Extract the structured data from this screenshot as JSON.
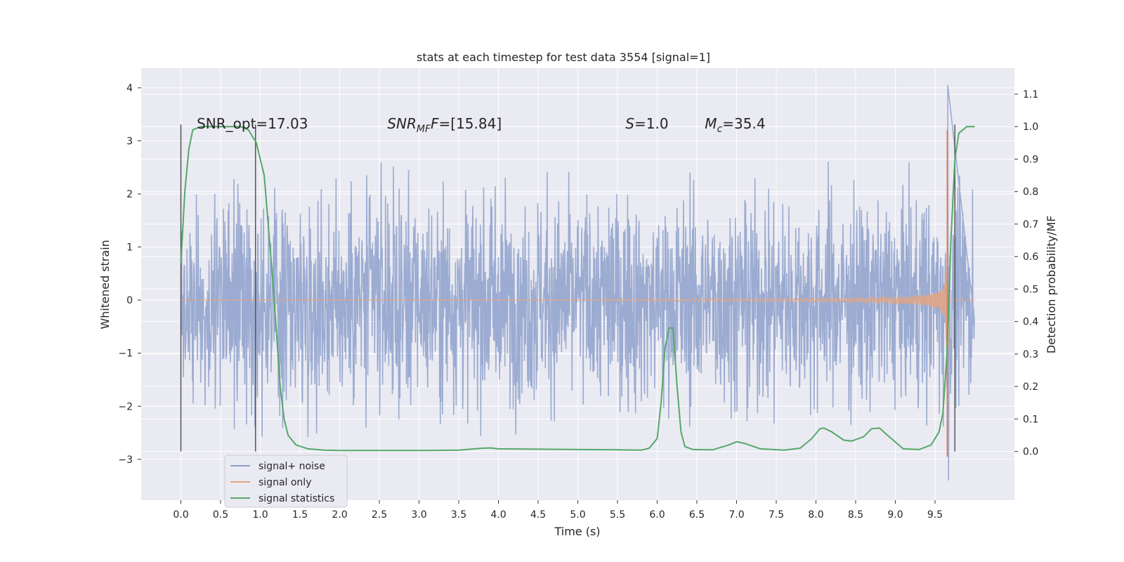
{
  "chart_data": {
    "type": "line",
    "title": "stats at each timestep for test data 3554 [signal=1]",
    "xlabel": "Time (s)",
    "ylabel": "Whitened strain",
    "y2label": "Detection probability/MF",
    "xlim": [
      -0.5,
      10.5
    ],
    "ylim": [
      -3.77,
      4.37
    ],
    "y2lim": [
      -0.15,
      1.18
    ],
    "xticks": [
      "0.0",
      "0.5",
      "1.0",
      "1.5",
      "2.0",
      "2.5",
      "3.0",
      "3.5",
      "4.0",
      "4.5",
      "5.0",
      "5.5",
      "6.0",
      "6.5",
      "7.0",
      "7.5",
      "8.0",
      "8.5",
      "9.0",
      "9.5"
    ],
    "yticks": [
      "−3",
      "−2",
      "−1",
      "0",
      "1",
      "2",
      "3",
      "4"
    ],
    "y2ticks": [
      "0.0",
      "0.1",
      "0.2",
      "0.3",
      "0.4",
      "0.5",
      "0.6",
      "0.7",
      "0.8",
      "0.9",
      "1.0",
      "1.1"
    ],
    "grid": true,
    "legend_position": "lower-left",
    "annotations": [
      {
        "text": "SNR_opt=17.03",
        "x": 0.2
      },
      {
        "text": "SNR",
        "sub": "MF",
        "rest": "=[15.84]",
        "x": 2.6
      },
      {
        "text": "S",
        "rest": "=1.0",
        "x": 5.6
      },
      {
        "text": "M",
        "sub": "c",
        "rest": "=35.4",
        "x": 6.6
      }
    ],
    "vertical_markers": [
      0.0,
      0.94,
      9.75
    ],
    "series": [
      {
        "name": "signal+ noise",
        "color": "#8da0cb",
        "description_values": {
          "t_start": 0.0,
          "t_end": 10.0,
          "noise_sigma": 1.0,
          "peak": 4.05,
          "min": -3.4
        }
      },
      {
        "name": "signal only",
        "color": "#e5a483",
        "description_values": {
          "t_start": 0.0,
          "t_end": 10.0,
          "merger_time": 9.65,
          "peak": 3.2,
          "min": -2.95
        }
      },
      {
        "name": "signal statistics",
        "color": "#55a868",
        "x": [
          0.0,
          0.05,
          0.1,
          0.15,
          0.25,
          0.5,
          0.75,
          0.85,
          0.95,
          1.05,
          1.15,
          1.2,
          1.25,
          1.3,
          1.35,
          1.45,
          1.6,
          1.8,
          2.0,
          2.5,
          3.0,
          3.5,
          3.8,
          3.9,
          4.0,
          4.5,
          5.0,
          5.5,
          5.8,
          5.9,
          6.0,
          6.05,
          6.1,
          6.15,
          6.2,
          6.25,
          6.3,
          6.35,
          6.45,
          6.7,
          6.9,
          7.0,
          7.1,
          7.3,
          7.6,
          7.8,
          7.95,
          8.05,
          8.1,
          8.2,
          8.35,
          8.45,
          8.6,
          8.7,
          8.8,
          8.9,
          9.1,
          9.3,
          9.45,
          9.55,
          9.6,
          9.65,
          9.7,
          9.75,
          9.8,
          9.9,
          10.0
        ],
        "y": [
          0.58,
          0.8,
          0.93,
          0.99,
          1.0,
          1.0,
          1.0,
          0.99,
          0.95,
          0.85,
          0.55,
          0.38,
          0.2,
          0.1,
          0.05,
          0.02,
          0.008,
          0.004,
          0.003,
          0.003,
          0.003,
          0.004,
          0.01,
          0.011,
          0.008,
          0.007,
          0.006,
          0.005,
          0.004,
          0.01,
          0.04,
          0.15,
          0.32,
          0.38,
          0.38,
          0.2,
          0.06,
          0.015,
          0.006,
          0.005,
          0.02,
          0.03,
          0.025,
          0.008,
          0.004,
          0.01,
          0.04,
          0.07,
          0.072,
          0.06,
          0.035,
          0.032,
          0.045,
          0.07,
          0.072,
          0.05,
          0.008,
          0.006,
          0.02,
          0.06,
          0.12,
          0.3,
          0.65,
          0.9,
          0.98,
          1.0,
          1.0
        ]
      }
    ],
    "legend_labels": [
      "signal+ noise",
      "signal only",
      "signal statistics"
    ]
  }
}
